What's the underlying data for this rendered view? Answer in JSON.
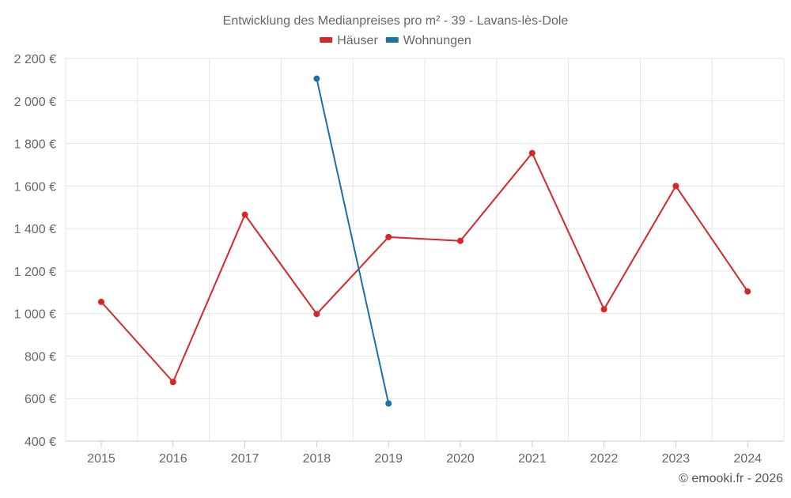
{
  "chart_data": {
    "type": "line",
    "title": "Entwicklung des Medianpreises pro m² - 39 - Lavans-lès-Dole",
    "categories": [
      "2015",
      "2016",
      "2017",
      "2018",
      "2019",
      "2020",
      "2021",
      "2022",
      "2023",
      "2024"
    ],
    "series": [
      {
        "name": "Häuser",
        "color": "#d62728",
        "values": [
          1055,
          678,
          1465,
          998,
          1360,
          1342,
          1755,
          1020,
          1600,
          1104
        ]
      },
      {
        "name": "Wohnungen",
        "color": "#1f6fa8",
        "values": [
          null,
          null,
          null,
          2105,
          577,
          null,
          null,
          null,
          null,
          null
        ]
      }
    ],
    "ylim": [
      400,
      2200
    ],
    "yticks": [
      400,
      600,
      800,
      1000,
      1200,
      1400,
      1600,
      1800,
      2000,
      2200
    ],
    "ytick_labels": [
      "400 €",
      "600 €",
      "800 €",
      "1 000 €",
      "1 200 €",
      "1 400 €",
      "1 600 €",
      "1 800 €",
      "2 000 €",
      "2 200 €"
    ],
    "xlabel": "",
    "ylabel": "",
    "grid": true,
    "legend_position": "top-center"
  },
  "credit": "© emooki.fr - 2026"
}
